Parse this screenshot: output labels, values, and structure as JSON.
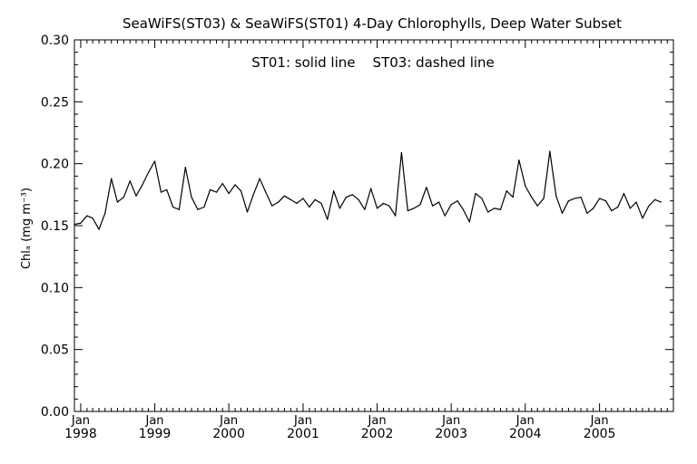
{
  "chart_data": {
    "type": "line",
    "title": "SeaWiFS(ST03) & SeaWiFS(ST01) 4-Day Chlorophylls, Deep Water Subset",
    "annotation": "ST01: solid line    ST03: dashed line",
    "ylabel": "Chlₐ (mg m⁻³)",
    "ylim": [
      0.0,
      0.3
    ],
    "yticks": [
      "0.00",
      "0.05",
      "0.10",
      "0.15",
      "0.20",
      "0.25",
      "0.30"
    ],
    "xlim": [
      "1997-12-01",
      "2005-12-31"
    ],
    "xticks": [
      {
        "month": "Jan",
        "year": "1998",
        "date": "1998-01-01"
      },
      {
        "month": "Jan",
        "year": "1999",
        "date": "1999-01-01"
      },
      {
        "month": "Jan",
        "year": "2000",
        "date": "2000-01-01"
      },
      {
        "month": "Jan",
        "year": "2001",
        "date": "2001-01-01"
      },
      {
        "month": "Jan",
        "year": "2002",
        "date": "2002-01-01"
      },
      {
        "month": "Jan",
        "year": "2003",
        "date": "2003-01-01"
      },
      {
        "month": "Jan",
        "year": "2004",
        "date": "2004-01-01"
      },
      {
        "month": "Jan",
        "year": "2005",
        "date": "2005-01-01"
      }
    ],
    "grid": false,
    "series": [
      {
        "name": "ST01",
        "points": [
          [
            "1997-12-01",
            0.151
          ],
          [
            "1998-01-01",
            0.152
          ],
          [
            "1998-02-01",
            0.158
          ],
          [
            "1998-03-01",
            0.156
          ],
          [
            "1998-04-01",
            0.147
          ],
          [
            "1998-05-01",
            0.16
          ],
          [
            "1998-06-01",
            0.188
          ],
          [
            "1998-07-01",
            0.169
          ],
          [
            "1998-08-01",
            0.173
          ],
          [
            "1998-09-01",
            0.186
          ],
          [
            "1998-10-01",
            0.174
          ],
          [
            "1998-11-01",
            0.183
          ],
          [
            "1998-12-01",
            0.193
          ],
          [
            "1999-01-01",
            0.202
          ],
          [
            "1999-02-01",
            0.177
          ],
          [
            "1999-03-01",
            0.179
          ],
          [
            "1999-04-01",
            0.165
          ],
          [
            "1999-05-01",
            0.163
          ],
          [
            "1999-06-01",
            0.197
          ],
          [
            "1999-07-01",
            0.173
          ],
          [
            "1999-08-01",
            0.163
          ],
          [
            "1999-09-01",
            0.165
          ],
          [
            "1999-10-01",
            0.179
          ],
          [
            "1999-11-01",
            0.177
          ],
          [
            "1999-12-01",
            0.184
          ],
          [
            "2000-01-01",
            0.176
          ],
          [
            "2000-02-01",
            0.183
          ],
          [
            "2000-03-01",
            0.178
          ],
          [
            "2000-04-01",
            0.161
          ],
          [
            "2000-05-01",
            0.175
          ],
          [
            "2000-06-01",
            0.188
          ],
          [
            "2000-07-01",
            0.177
          ],
          [
            "2000-08-01",
            0.166
          ],
          [
            "2000-09-01",
            0.169
          ],
          [
            "2000-10-01",
            0.174
          ],
          [
            "2000-11-01",
            0.171
          ],
          [
            "2000-12-01",
            0.168
          ],
          [
            "2001-01-01",
            0.172
          ],
          [
            "2001-02-01",
            0.165
          ],
          [
            "2001-03-01",
            0.171
          ],
          [
            "2001-04-01",
            0.168
          ],
          [
            "2001-05-01",
            0.155
          ],
          [
            "2001-06-01",
            0.178
          ],
          [
            "2001-07-01",
            0.164
          ],
          [
            "2001-08-01",
            0.173
          ],
          [
            "2001-09-01",
            0.175
          ],
          [
            "2001-10-01",
            0.171
          ],
          [
            "2001-11-01",
            0.163
          ],
          [
            "2001-12-01",
            0.18
          ],
          [
            "2002-01-01",
            0.164
          ],
          [
            "2002-02-01",
            0.168
          ],
          [
            "2002-03-01",
            0.166
          ],
          [
            "2002-04-01",
            0.158
          ],
          [
            "2002-05-01",
            0.209
          ],
          [
            "2002-06-01",
            0.162
          ],
          [
            "2002-07-01",
            0.164
          ],
          [
            "2002-08-01",
            0.167
          ],
          [
            "2002-09-01",
            0.181
          ],
          [
            "2002-10-01",
            0.166
          ],
          [
            "2002-11-01",
            0.169
          ],
          [
            "2002-12-01",
            0.158
          ],
          [
            "2003-01-01",
            0.167
          ],
          [
            "2003-02-01",
            0.17
          ],
          [
            "2003-03-01",
            0.163
          ],
          [
            "2003-04-01",
            0.153
          ],
          [
            "2003-05-01",
            0.176
          ],
          [
            "2003-06-01",
            0.172
          ],
          [
            "2003-07-01",
            0.161
          ],
          [
            "2003-08-01",
            0.164
          ],
          [
            "2003-09-01",
            0.163
          ],
          [
            "2003-10-01",
            0.178
          ],
          [
            "2003-11-01",
            0.173
          ],
          [
            "2003-12-01",
            0.203
          ],
          [
            "2004-01-01",
            0.182
          ],
          [
            "2004-02-01",
            0.173
          ],
          [
            "2004-03-01",
            0.166
          ],
          [
            "2004-04-01",
            0.172
          ],
          [
            "2004-05-01",
            0.21
          ],
          [
            "2004-06-01",
            0.174
          ],
          [
            "2004-07-01",
            0.16
          ],
          [
            "2004-08-01",
            0.17
          ],
          [
            "2004-09-01",
            0.172
          ],
          [
            "2004-10-01",
            0.173
          ],
          [
            "2004-11-01",
            0.16
          ],
          [
            "2004-12-01",
            0.164
          ],
          [
            "2005-01-01",
            0.172
          ],
          [
            "2005-02-01",
            0.17
          ],
          [
            "2005-03-01",
            0.162
          ],
          [
            "2005-04-01",
            0.165
          ],
          [
            "2005-05-01",
            0.176
          ],
          [
            "2005-06-01",
            0.164
          ],
          [
            "2005-07-01",
            0.169
          ],
          [
            "2005-08-01",
            0.156
          ],
          [
            "2005-09-01",
            0.166
          ],
          [
            "2005-10-01",
            0.171
          ],
          [
            "2005-11-01",
            0.169
          ]
        ]
      }
    ]
  }
}
